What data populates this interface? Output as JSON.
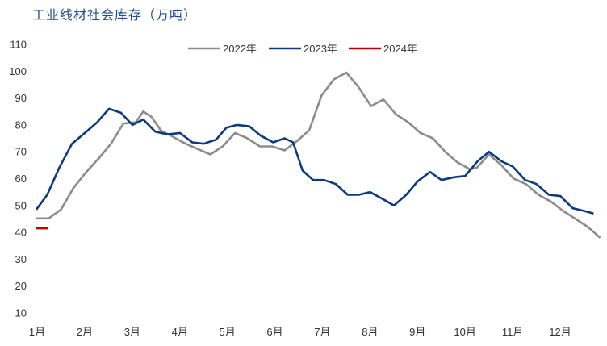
{
  "chart_data": {
    "type": "line",
    "title": "工业线材社会库存（万吨）",
    "xlabel": "",
    "ylabel": "",
    "ylim": [
      10,
      110
    ],
    "yticks": [
      10,
      20,
      30,
      40,
      50,
      60,
      70,
      80,
      90,
      100,
      110
    ],
    "xlim": [
      1,
      12.9
    ],
    "xticks": [
      {
        "x": 1,
        "label": "1月"
      },
      {
        "x": 2,
        "label": "2月"
      },
      {
        "x": 3,
        "label": "3月"
      },
      {
        "x": 4,
        "label": "4月"
      },
      {
        "x": 5,
        "label": "5月"
      },
      {
        "x": 6,
        "label": "6月"
      },
      {
        "x": 7,
        "label": "7月"
      },
      {
        "x": 8,
        "label": "8月"
      },
      {
        "x": 9,
        "label": "9月"
      },
      {
        "x": 10,
        "label": "10月"
      },
      {
        "x": 11,
        "label": "11月"
      },
      {
        "x": 12,
        "label": "12月"
      }
    ],
    "grid": false,
    "legend": "top-center",
    "series": [
      {
        "name": "2022年",
        "color": "#8c8c8c",
        "x": [
          1.0,
          1.26,
          1.52,
          1.78,
          2.05,
          2.31,
          2.57,
          2.83,
          3.09,
          3.25,
          3.42,
          3.62,
          3.88,
          4.14,
          4.4,
          4.66,
          4.92,
          5.18,
          5.44,
          5.7,
          5.96,
          6.22,
          6.48,
          6.74,
          7.0,
          7.26,
          7.52,
          7.78,
          8.04,
          8.3,
          8.56,
          8.82,
          9.08,
          9.34,
          9.6,
          9.86,
          10.12,
          10.26,
          10.52,
          10.78,
          11.04,
          11.3,
          11.56,
          11.82,
          12.08,
          12.34,
          12.6,
          12.86
        ],
        "y": [
          45.2,
          45.2,
          48.5,
          56.5,
          62.5,
          67.5,
          73,
          80.5,
          81,
          85,
          83,
          78,
          75.5,
          73,
          71,
          69,
          72,
          77,
          75,
          72,
          72,
          70.5,
          74,
          78,
          91,
          97,
          99.5,
          94,
          87,
          89.5,
          84,
          81,
          77,
          75,
          70,
          66,
          63.5,
          64,
          69,
          65,
          60,
          58,
          54,
          51.5,
          48,
          45,
          42,
          38
        ]
      },
      {
        "name": "2023年",
        "color": "#0b3a7e",
        "x": [
          1.0,
          1.23,
          1.48,
          1.75,
          2.02,
          2.28,
          2.53,
          2.78,
          3.02,
          3.25,
          3.5,
          3.76,
          4.02,
          4.28,
          4.52,
          4.78,
          5.0,
          5.22,
          5.48,
          5.72,
          5.98,
          6.22,
          6.4,
          6.6,
          6.82,
          7.05,
          7.3,
          7.55,
          7.78,
          8.02,
          8.28,
          8.52,
          8.78,
          9.02,
          9.28,
          9.52,
          9.78,
          10.02,
          10.28,
          10.52,
          10.78,
          11.02,
          11.28,
          11.52,
          11.78,
          12.02,
          12.28,
          12.52,
          12.72
        ],
        "y": [
          48.5,
          54,
          64,
          73,
          77,
          81,
          86,
          84.5,
          80,
          82,
          77.5,
          76.5,
          77,
          73.5,
          73,
          74.5,
          79,
          80,
          79.5,
          76,
          73.5,
          75,
          73.5,
          63,
          59.5,
          59.5,
          58,
          54,
          54,
          55,
          52.5,
          50,
          54,
          59,
          62.5,
          59.5,
          60.5,
          61,
          66.5,
          70,
          66.5,
          64.5,
          59.5,
          58,
          54,
          53.5,
          49,
          48,
          47
        ]
      },
      {
        "name": "2024年",
        "color": "#c00000",
        "x": [
          1.0,
          1.25
        ],
        "y": [
          41.5,
          41.5
        ]
      }
    ]
  }
}
